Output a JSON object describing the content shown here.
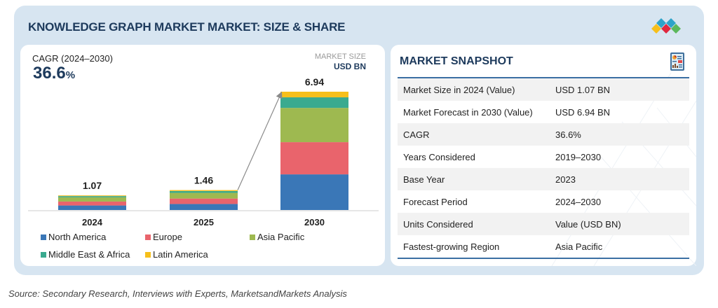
{
  "title": "KNOWLEDGE GRAPH MARKET MARKET: SIZE & SHARE",
  "logo_icon": "marketsandmarkets-diamond-logo",
  "cagr": {
    "label": "CAGR (2024–2030)",
    "value": "36.6",
    "unit": "%"
  },
  "market_size_label": "MARKET SIZE",
  "market_size_unit": "USD BN",
  "colors": {
    "North America": "#3a77b7",
    "Europe": "#e9646c",
    "Asia Pacific": "#9eb950",
    "Middle East & Africa": "#3aaa8f",
    "Latin America": "#f6bf1b",
    "title": "#1d3a5c",
    "panel": "#d7e5f1"
  },
  "chart_data": {
    "type": "bar",
    "stacked": true,
    "categories": [
      "2024",
      "2025",
      "2030"
    ],
    "series": [
      {
        "name": "North America",
        "values": [
          0.33,
          0.44,
          2.09
        ]
      },
      {
        "name": "Europe",
        "values": [
          0.29,
          0.4,
          1.89
        ]
      },
      {
        "name": "Asia Pacific",
        "values": [
          0.31,
          0.42,
          2.01
        ]
      },
      {
        "name": "Middle East & Africa",
        "values": [
          0.09,
          0.13,
          0.62
        ]
      },
      {
        "name": "Latin America",
        "values": [
          0.05,
          0.07,
          0.33
        ]
      }
    ],
    "totals": [
      "1.07",
      "1.46",
      "6.94"
    ],
    "title": "",
    "xlabel": "",
    "ylabel": "USD BN",
    "ylim": [
      0,
      7
    ],
    "grid": false,
    "legend": "bottom",
    "annotations": [
      "growth arrow from 2025 to 2030"
    ]
  },
  "legend": [
    {
      "label": "North America"
    },
    {
      "label": "Europe"
    },
    {
      "label": "Asia Pacific"
    },
    {
      "label": "Middle East & Africa"
    },
    {
      "label": "Latin America"
    }
  ],
  "snapshot": {
    "title": "MARKET SNAPSHOT",
    "icon": "report-document-icon",
    "rows": [
      {
        "key": "Market Size in 2024 (Value)",
        "value": "USD 1.07 BN"
      },
      {
        "key": "Market Forecast in 2030 (Value)",
        "value": "USD 6.94 BN"
      },
      {
        "key": "CAGR",
        "value": "36.6%"
      },
      {
        "key": "Years Considered",
        "value": "2019–2030"
      },
      {
        "key": "Base Year",
        "value": "2023"
      },
      {
        "key": "Forecast Period",
        "value": "2024–2030"
      },
      {
        "key": "Units Considered",
        "value": "Value (USD BN)"
      },
      {
        "key": "Fastest-growing Region",
        "value": "Asia Pacific"
      }
    ]
  },
  "source": "Source: Secondary Research, Interviews with Experts, MarketsandMarkets Analysis"
}
